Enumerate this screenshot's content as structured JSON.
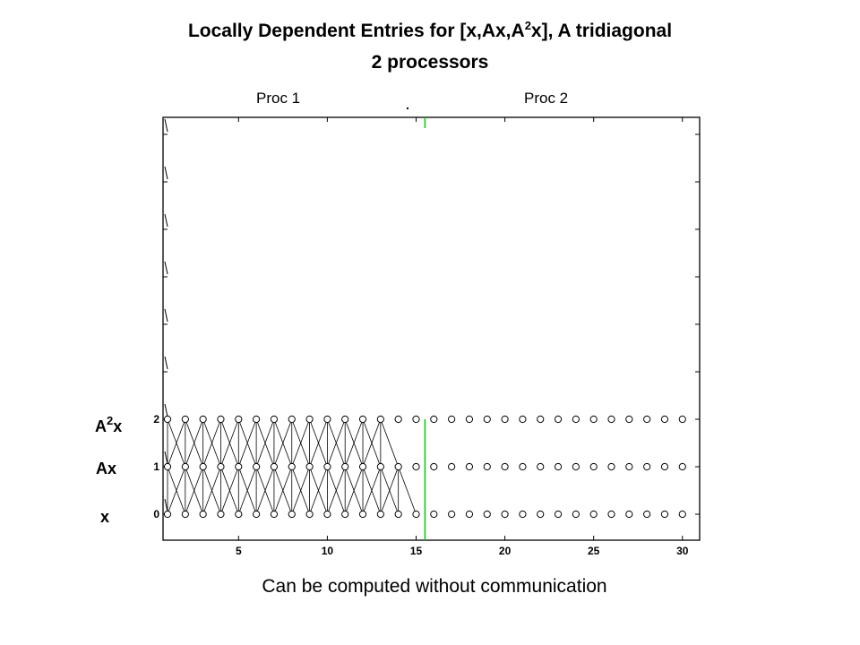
{
  "title": {
    "line1_pre": "Locally Dependent Entries for [x,Ax,A",
    "line1_sup": "2",
    "line1_post": "x], A tridiagonal",
    "line2": "2 processors"
  },
  "proc_labels": [
    "Proc 1",
    "Proc 2"
  ],
  "row_labels": {
    "a2x_base": "A",
    "a2x_sup": "2",
    "a2x_tail": "x",
    "ax": "Ax",
    "x": "x"
  },
  "caption": "Can be computed without communication",
  "chart_data": {
    "type": "scatter",
    "x_ticks": [
      5,
      10,
      15,
      20,
      25,
      30
    ],
    "y_ticks": [
      0,
      1,
      2
    ],
    "xlim": [
      0,
      30.5
    ],
    "n_points": 30,
    "levels": [
      0,
      1,
      2
    ],
    "proc_boundary_x": 15.5,
    "dependent_counts": {
      "level_0": 15,
      "level_1": 14,
      "level_2": 13
    },
    "colors": {
      "boundary": "#00cc00",
      "marks": "#000000"
    }
  }
}
